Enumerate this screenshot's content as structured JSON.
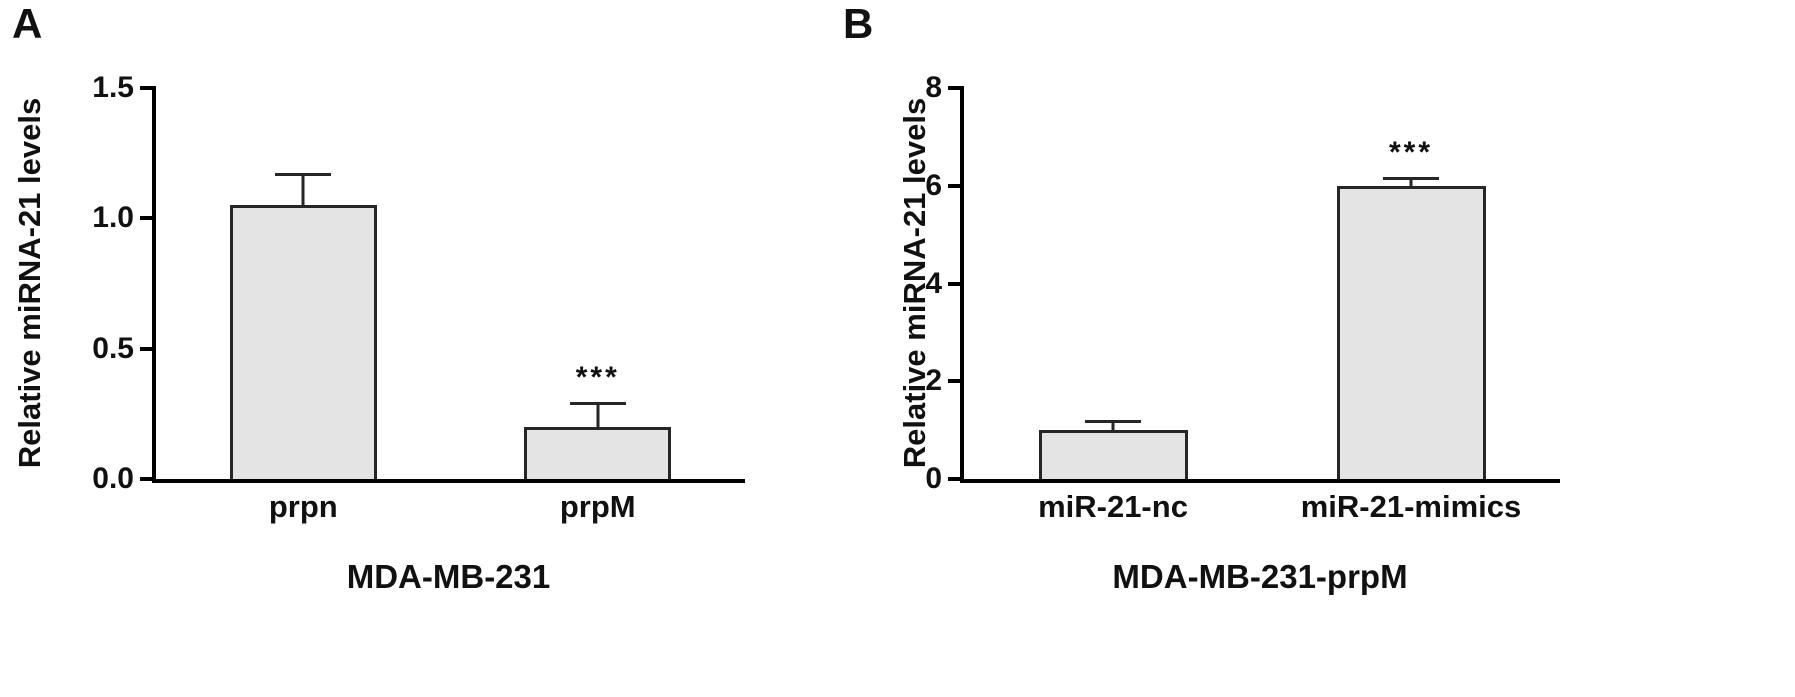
{
  "figure": {
    "background": "#ffffff",
    "text_color": "#111111"
  },
  "chart_data": [
    {
      "type": "bar",
      "panel_label": "A",
      "title": "MDA-MB-231",
      "ylabel": "Relative miRNA-21 levels",
      "categories": [
        "prpn",
        "prpM"
      ],
      "values": [
        1.05,
        0.2
      ],
      "errors": [
        0.12,
        0.09
      ],
      "annotations": [
        "",
        "***"
      ],
      "ylim": [
        0,
        1.5
      ],
      "yticks": [
        "0.0",
        "0.5",
        "1.0",
        "1.5"
      ],
      "grid": false,
      "legend": false,
      "bar_fill": "#e4e4e4",
      "bar_border": "#262626",
      "axis_color": "#000000"
    },
    {
      "type": "bar",
      "panel_label": "B",
      "title": "MDA-MB-231-prpM",
      "ylabel": "Relative miRNA-21 levels",
      "categories": [
        "miR-21-nc",
        "miR-21-mimics"
      ],
      "values": [
        1.0,
        6.0
      ],
      "errors": [
        0.18,
        0.15
      ],
      "annotations": [
        "",
        "***"
      ],
      "ylim": [
        0,
        8
      ],
      "yticks": [
        "0",
        "2",
        "4",
        "6",
        "8"
      ],
      "grid": false,
      "legend": false,
      "bar_fill": "#e4e4e4",
      "bar_border": "#262626",
      "axis_color": "#000000"
    }
  ]
}
